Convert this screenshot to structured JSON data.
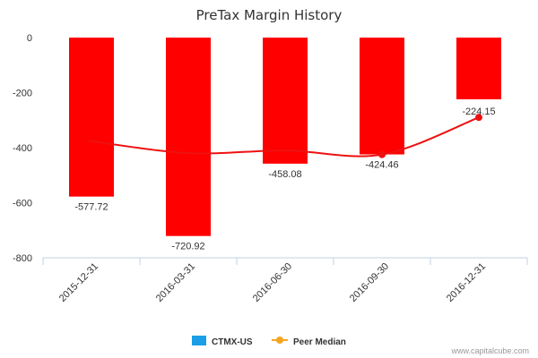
{
  "chart_data": {
    "type": "bar",
    "title": "PreTax Margin History",
    "categories": [
      "2015-12-31",
      "2016-03-31",
      "2016-06-30",
      "2016-09-30",
      "2016-12-31"
    ],
    "series": [
      {
        "name": "CTMX-US",
        "type": "bar",
        "values": [
          -577.72,
          -720.92,
          -458.08,
          -424.46,
          -224.15
        ],
        "labels": [
          "-577.72",
          "-720.92",
          "-458.08",
          "-424.46",
          "-224.15"
        ],
        "color": "#ff0000",
        "legend_color": "#1a9ee8"
      },
      {
        "name": "Peer Median",
        "type": "line",
        "values": [
          -375,
          -420,
          -410,
          -425,
          -290
        ],
        "color": "#ee1111",
        "legend_color": "#f5a623"
      }
    ],
    "y_ticks": [
      "0",
      "-200",
      "-400",
      "-600",
      "-800"
    ],
    "ylim": [
      -800,
      0
    ],
    "grid": false,
    "legend_position": "bottom-center"
  },
  "credit": "www.capitalcube.com"
}
